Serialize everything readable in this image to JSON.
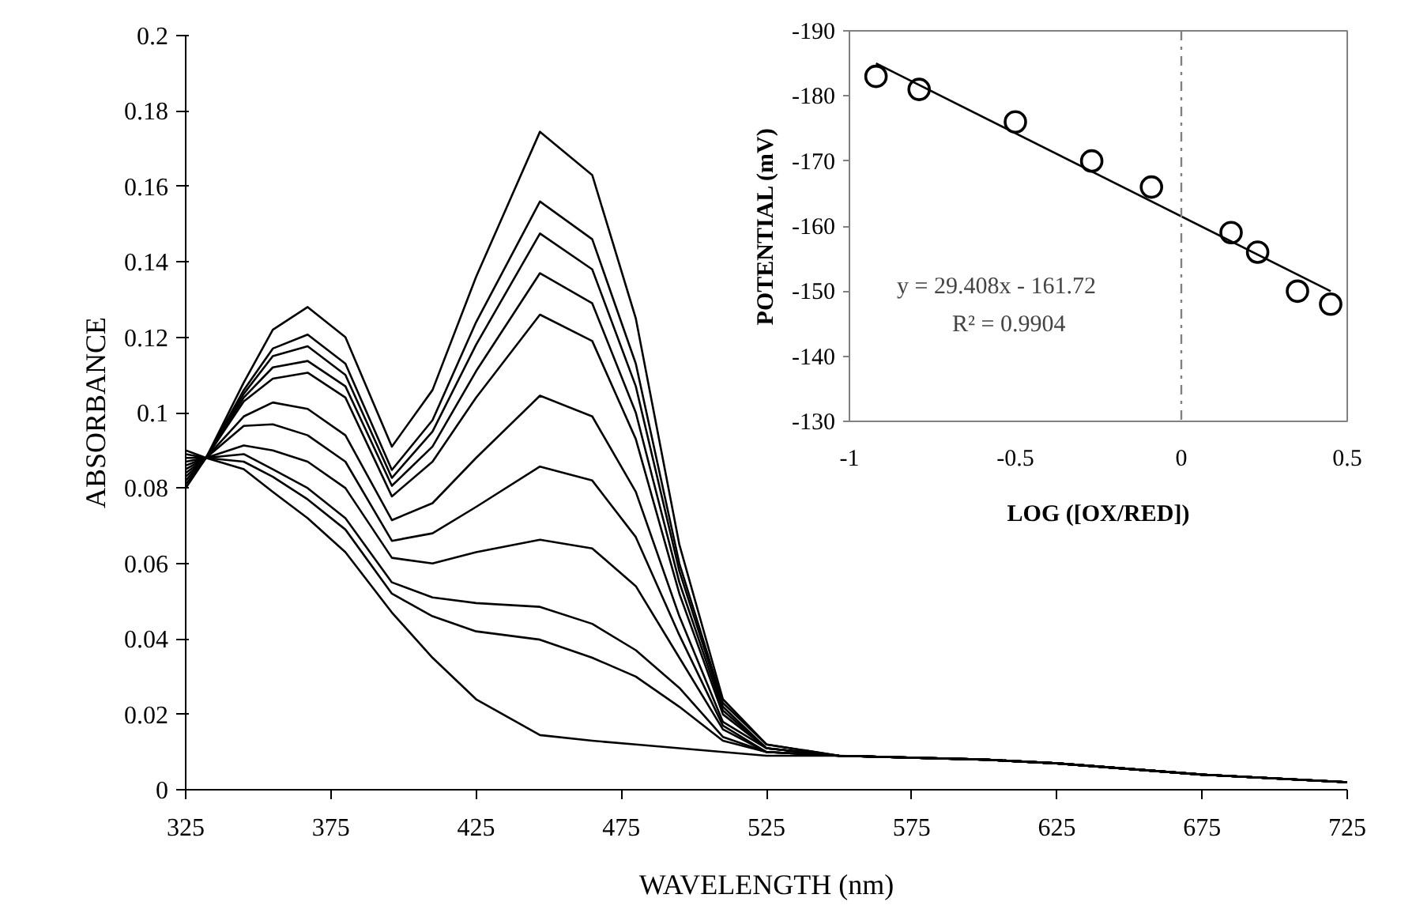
{
  "chart_data": [
    {
      "type": "line",
      "xlabel": "WAVELENGTH (nm)",
      "ylabel": "ABSORBANCE",
      "x": [
        325,
        332,
        345,
        355,
        367,
        380,
        396,
        410,
        425,
        447,
        465,
        480,
        495,
        510,
        525,
        550,
        600,
        625,
        675,
        725
      ],
      "series": [
        {
          "color": "#000000",
          "values": [
            0.085,
            0.088,
            0.108,
            0.122,
            0.128,
            0.12,
            0.091,
            0.106,
            0.136,
            0.1745,
            0.163,
            0.125,
            0.065,
            0.024,
            0.012,
            0.009,
            0.008,
            0.007,
            0.004,
            0.002
          ]
        },
        {
          "color": "#000000",
          "values": [
            0.086,
            0.088,
            0.106,
            0.117,
            0.1207,
            0.113,
            0.0848,
            0.098,
            0.124,
            0.156,
            0.146,
            0.113,
            0.06,
            0.023,
            0.012,
            0.009,
            0.008,
            0.007,
            0.004,
            0.002
          ]
        },
        {
          "color": "#000000",
          "values": [
            0.087,
            0.088,
            0.105,
            0.115,
            0.1176,
            0.11,
            0.0827,
            0.095,
            0.118,
            0.1475,
            0.138,
            0.107,
            0.058,
            0.022,
            0.011,
            0.009,
            0.008,
            0.007,
            0.004,
            0.002
          ]
        },
        {
          "color": "#000000",
          "values": [
            0.088,
            0.088,
            0.104,
            0.112,
            0.1137,
            0.107,
            0.0806,
            0.091,
            0.111,
            0.137,
            0.129,
            0.1,
            0.055,
            0.021,
            0.011,
            0.009,
            0.008,
            0.007,
            0.004,
            0.002
          ]
        },
        {
          "color": "#000000",
          "values": [
            0.089,
            0.088,
            0.103,
            0.109,
            0.1106,
            0.104,
            0.0778,
            0.087,
            0.104,
            0.126,
            0.119,
            0.093,
            0.052,
            0.02,
            0.011,
            0.009,
            0.008,
            0.007,
            0.004,
            0.002
          ]
        },
        {
          "color": "#000000",
          "values": [
            0.09,
            0.088,
            0.099,
            0.1027,
            0.101,
            0.094,
            0.0715,
            0.076,
            0.088,
            0.1045,
            0.099,
            0.079,
            0.046,
            0.018,
            0.011,
            0.009,
            0.008,
            0.007,
            0.004,
            0.002
          ]
        },
        {
          "color": "#000000",
          "values": [
            0.084,
            0.088,
            0.0965,
            0.0969,
            0.094,
            0.087,
            0.066,
            0.068,
            0.075,
            0.0857,
            0.082,
            0.067,
            0.041,
            0.017,
            0.01,
            0.009,
            0.008,
            0.007,
            0.004,
            0.002
          ]
        },
        {
          "color": "#000000",
          "values": [
            0.083,
            0.088,
            0.0913,
            0.09,
            0.087,
            0.08,
            0.0615,
            0.06,
            0.063,
            0.0663,
            0.064,
            0.054,
            0.035,
            0.016,
            0.01,
            0.009,
            0.008,
            0.007,
            0.004,
            0.002
          ]
        },
        {
          "color": "#000000",
          "values": [
            0.082,
            0.088,
            0.089,
            0.085,
            0.08,
            0.072,
            0.055,
            0.051,
            0.0495,
            0.0485,
            0.044,
            0.037,
            0.027,
            0.014,
            0.01,
            0.009,
            0.008,
            0.007,
            0.004,
            0.002
          ]
        },
        {
          "color": "#000000",
          "values": [
            0.081,
            0.088,
            0.087,
            0.083,
            0.077,
            0.069,
            0.052,
            0.046,
            0.042,
            0.0398,
            0.035,
            0.03,
            0.022,
            0.013,
            0.01,
            0.009,
            0.008,
            0.007,
            0.004,
            0.002
          ]
        },
        {
          "color": "#000000",
          "values": [
            0.08,
            0.088,
            0.085,
            0.079,
            0.072,
            0.063,
            0.047,
            0.035,
            0.024,
            0.0145,
            0.013,
            0.012,
            0.011,
            0.01,
            0.009,
            0.009,
            0.008,
            0.007,
            0.004,
            0.002
          ]
        }
      ],
      "xlim": [
        325,
        725
      ],
      "xticks": [
        325,
        375,
        425,
        475,
        525,
        575,
        625,
        675,
        725
      ],
      "ylim": [
        0,
        0.2
      ],
      "yticks": [
        0,
        0.02,
        0.04,
        0.06,
        0.08,
        0.1,
        0.12,
        0.14,
        0.16,
        0.18,
        0.2
      ],
      "grid": false
    },
    {
      "type": "scatter",
      "xlabel": "LOG ([OX/RED])",
      "ylabel": "POTENTIAL (mV)",
      "series": [
        {
          "type": "scatter",
          "marker": "circle",
          "color": "#000000",
          "x": [
            -0.92,
            -0.79,
            -0.5,
            -0.27,
            -0.09,
            0.15,
            0.23,
            0.35,
            0.45
          ],
          "values": [
            -183,
            -181,
            -176,
            -170,
            -166,
            -159,
            -156,
            -150,
            -148
          ]
        },
        {
          "type": "line",
          "color": "#000000",
          "x": [
            -0.92,
            0.45
          ],
          "values": [
            -185,
            -150
          ]
        }
      ],
      "xlim": [
        -1,
        0.5
      ],
      "xticks": [
        -1,
        -0.5,
        0,
        0.5
      ],
      "ylim": [
        -130,
        -190
      ],
      "yticks": [
        -130,
        -140,
        -150,
        -160,
        -170,
        -180,
        -190
      ],
      "ref_lines": [
        {
          "axis": "x",
          "value": 0,
          "line_style": "dashdot",
          "color": "#808080"
        }
      ],
      "annotations": [
        "y = 29.408x - 161.72",
        "R² = 0.9904"
      ],
      "grid": false
    }
  ]
}
